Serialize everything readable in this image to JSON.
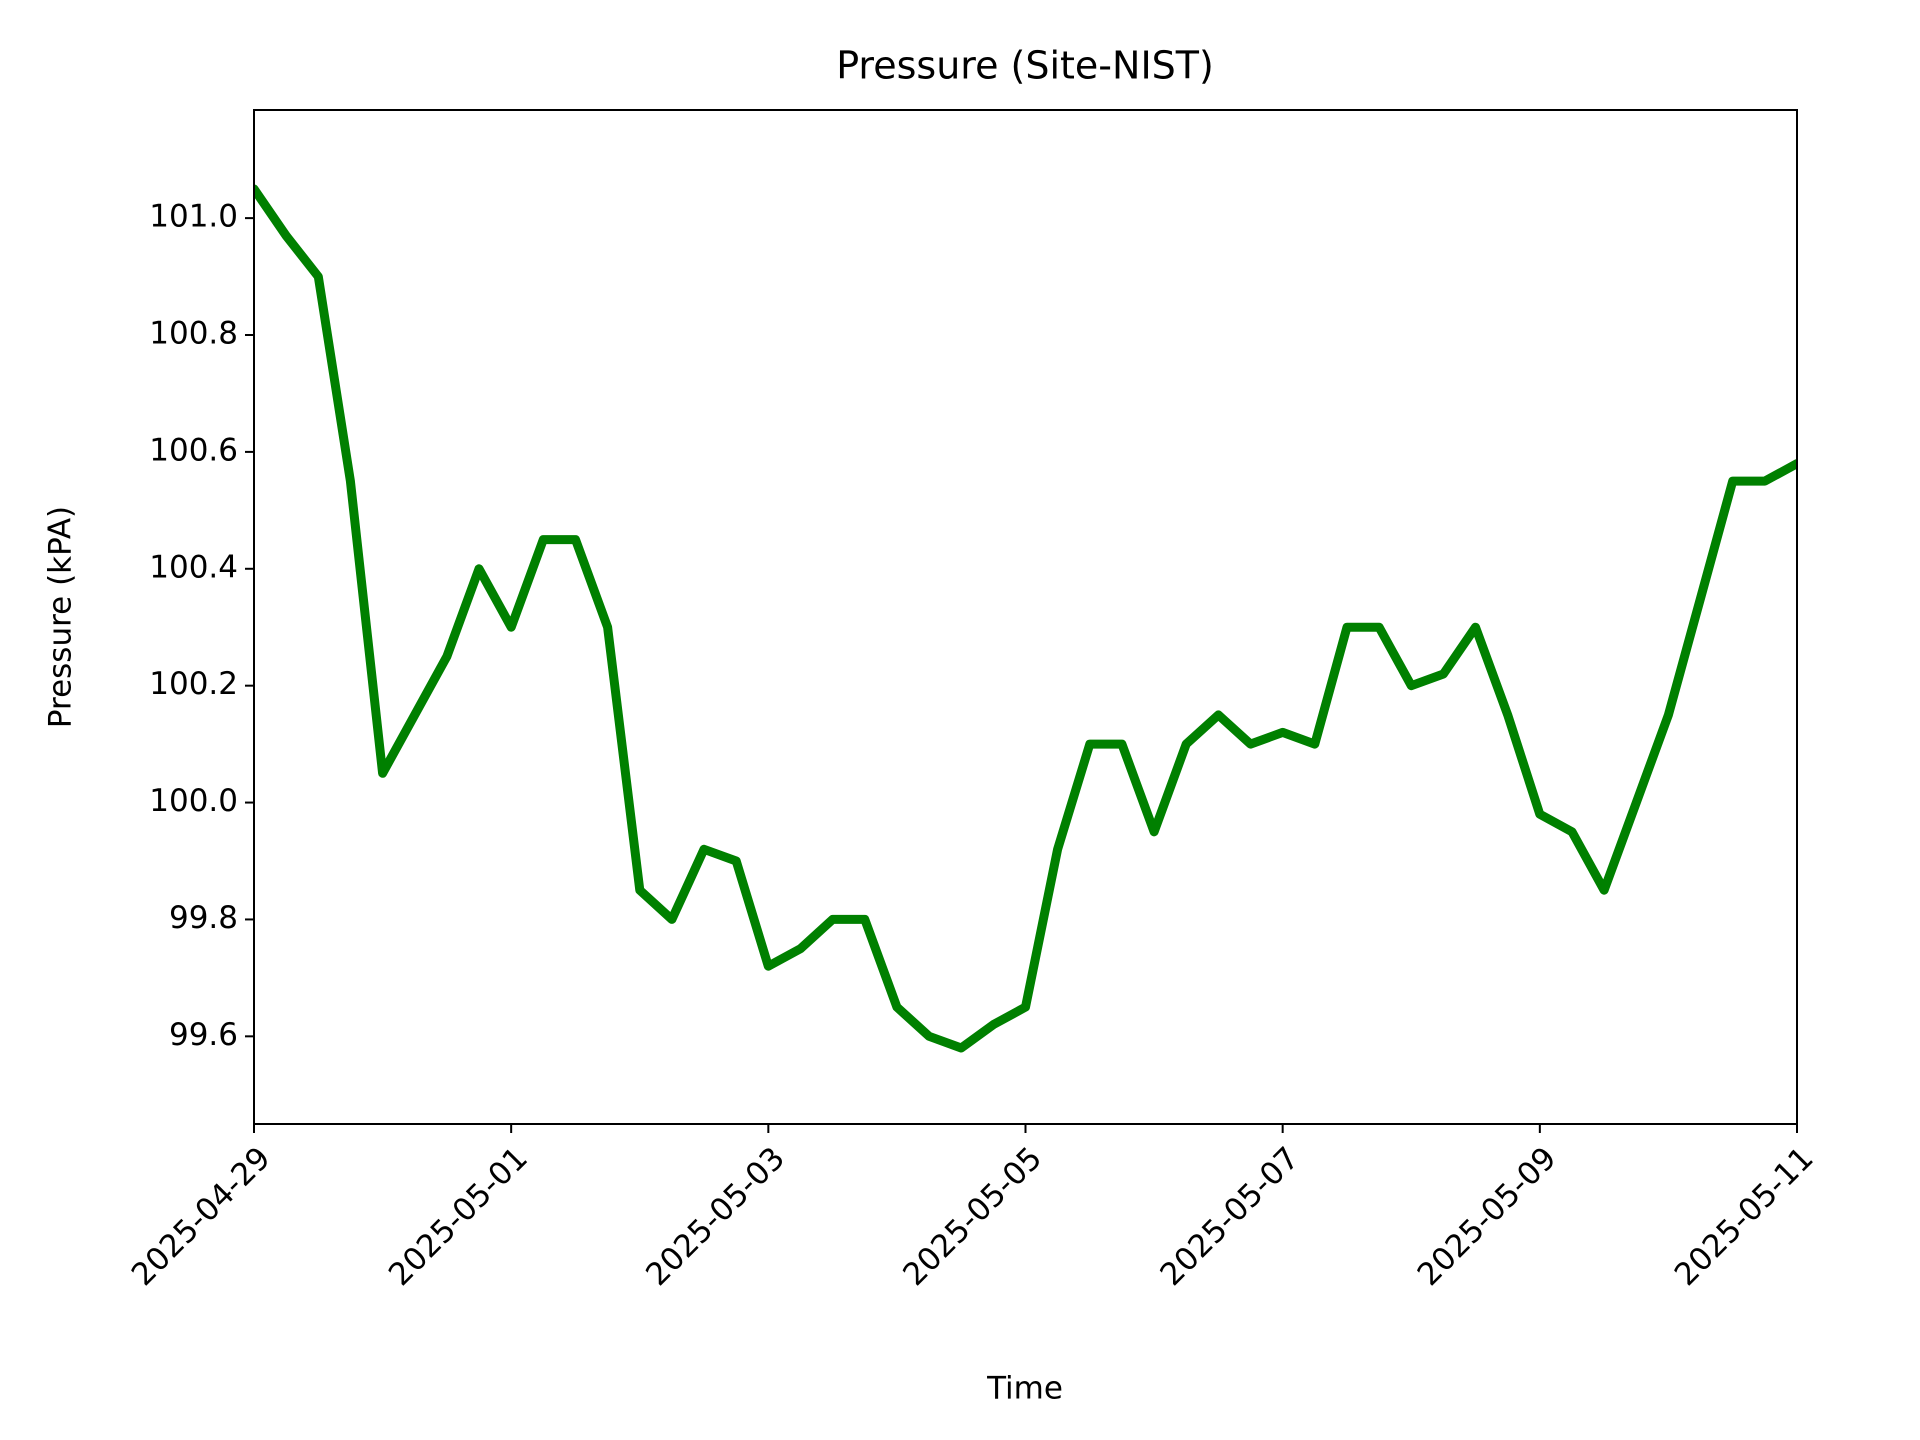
{
  "chart_data": {
    "type": "line",
    "title": "Pressure (Site-NIST)",
    "xlabel": "Time",
    "ylabel": "Pressure (kPA)",
    "x": [
      "2025-04-29 00:00",
      "2025-04-29 06:00",
      "2025-04-29 12:00",
      "2025-04-29 18:00",
      "2025-04-30 00:00",
      "2025-04-30 06:00",
      "2025-04-30 12:00",
      "2025-04-30 18:00",
      "2025-05-01 00:00",
      "2025-05-01 06:00",
      "2025-05-01 12:00",
      "2025-05-01 18:00",
      "2025-05-02 00:00",
      "2025-05-02 06:00",
      "2025-05-02 12:00",
      "2025-05-02 18:00",
      "2025-05-03 00:00",
      "2025-05-03 06:00",
      "2025-05-03 12:00",
      "2025-05-03 18:00",
      "2025-05-04 00:00",
      "2025-05-04 06:00",
      "2025-05-04 12:00",
      "2025-05-04 18:00",
      "2025-05-05 00:00",
      "2025-05-05 06:00",
      "2025-05-05 12:00",
      "2025-05-05 18:00",
      "2025-05-06 00:00",
      "2025-05-06 06:00",
      "2025-05-06 12:00",
      "2025-05-06 18:00",
      "2025-05-07 00:00",
      "2025-05-07 06:00",
      "2025-05-07 12:00",
      "2025-05-07 18:00",
      "2025-05-08 00:00",
      "2025-05-08 06:00",
      "2025-05-08 12:00",
      "2025-05-08 18:00",
      "2025-05-09 00:00",
      "2025-05-09 06:00",
      "2025-05-09 12:00",
      "2025-05-09 18:00",
      "2025-05-10 00:00",
      "2025-05-10 06:00",
      "2025-05-10 12:00",
      "2025-05-10 18:00",
      "2025-05-11 00:00"
    ],
    "series": [
      {
        "name": "Pressure",
        "color": "#008000",
        "values": [
          101.05,
          100.97,
          100.9,
          100.55,
          100.05,
          100.15,
          100.25,
          100.4,
          100.3,
          100.45,
          100.45,
          100.3,
          99.85,
          99.8,
          99.92,
          99.9,
          99.72,
          99.75,
          99.8,
          99.8,
          99.65,
          99.6,
          99.58,
          99.62,
          99.65,
          99.92,
          100.1,
          100.1,
          99.95,
          100.1,
          100.15,
          100.1,
          100.12,
          100.1,
          100.3,
          100.3,
          100.2,
          100.22,
          100.3,
          100.15,
          99.98,
          99.95,
          99.85,
          100.0,
          100.15,
          100.35,
          100.55,
          100.55,
          100.58
        ]
      }
    ],
    "xlim": [
      "2025-04-29",
      "2025-05-11"
    ],
    "xticks": [
      "2025-04-29",
      "2025-05-01",
      "2025-05-03",
      "2025-05-05",
      "2025-05-07",
      "2025-05-09",
      "2025-05-11"
    ],
    "ylim": [
      99.45,
      101.185
    ],
    "yticks": [
      {
        "value": 99.6,
        "label": "99.6"
      },
      {
        "value": 99.8,
        "label": "99.8"
      },
      {
        "value": 100,
        "label": "100.0"
      },
      {
        "value": 100.2,
        "label": "100.2"
      },
      {
        "value": 100.4,
        "label": "100.4"
      },
      {
        "value": 100.6,
        "label": "100.6"
      },
      {
        "value": 100.8,
        "label": "100.8"
      },
      {
        "value": 101,
        "label": "101.0"
      }
    ],
    "grid": false
  }
}
